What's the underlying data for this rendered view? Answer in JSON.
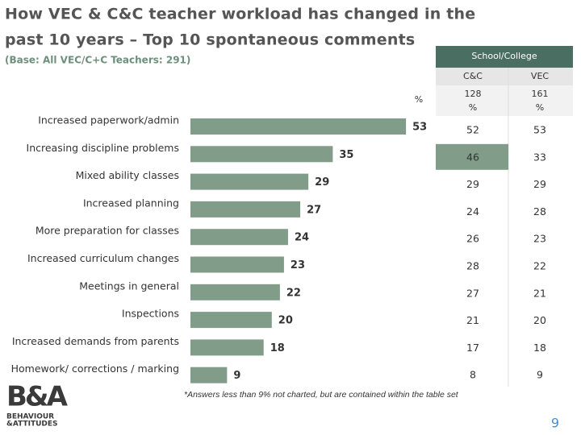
{
  "title": "How VEC & C&C teacher workload has changed in the past 10 years – Top 10 spontaneous comments",
  "subtitle": "(Base: All VEC/C+C Teachers: 291)",
  "chart_data": {
    "type": "bar",
    "orientation": "horizontal",
    "unit_label": "%",
    "color": "#819c88",
    "categories": [
      "Increased paperwork/admin",
      "Increasing discipline problems",
      "Mixed ability classes",
      "Increased planning",
      "More preparation for classes",
      "Increased curriculum changes",
      "Meetings in general",
      "Inspections",
      "Increased demands from parents",
      "Homework/ corrections / marking"
    ],
    "values": [
      53,
      35,
      29,
      27,
      24,
      23,
      22,
      20,
      18,
      9
    ]
  },
  "table": {
    "group_header": "School/College",
    "columns": [
      "C&C",
      "VEC"
    ],
    "bases": [
      128,
      161
    ],
    "units": [
      "%",
      "%"
    ],
    "rows": [
      [
        52,
        53
      ],
      [
        46,
        33
      ],
      [
        29,
        29
      ],
      [
        24,
        28
      ],
      [
        26,
        23
      ],
      [
        28,
        22
      ],
      [
        27,
        21
      ],
      [
        21,
        20
      ],
      [
        17,
        18
      ],
      [
        8,
        9
      ]
    ]
  },
  "footnote": "*Answers less than 9% not charted, but are contained within the table set",
  "page_number": "9",
  "logo": {
    "mark": "B&A",
    "lines": [
      "BEHAVIOUR",
      "&ATTITUDES"
    ]
  }
}
